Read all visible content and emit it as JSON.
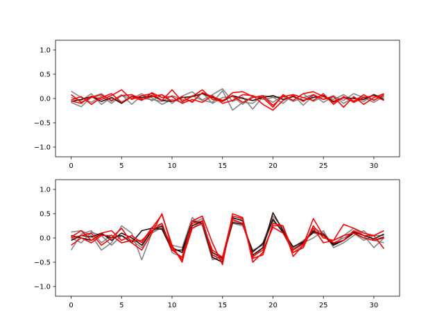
{
  "chart_data": [
    {
      "type": "line",
      "title": "",
      "xlabel": "",
      "ylabel": "",
      "xlim": [
        -1.55,
        32.55
      ],
      "ylim": [
        -1.2,
        1.2
      ],
      "xticks": [
        0,
        5,
        10,
        15,
        20,
        25,
        30
      ],
      "yticks": [
        -1.0,
        -0.5,
        0.0,
        0.5,
        1.0
      ],
      "xtick_labels": [
        "0",
        "5",
        "10",
        "15",
        "20",
        "25",
        "30"
      ],
      "ytick_labels": [
        "−1.0",
        "−0.5",
        "0.0",
        "0.5",
        "1.0"
      ],
      "grid": false,
      "colors": {
        "gray": "#777777",
        "dark": "#2a0a0a",
        "red": "#ff0000"
      },
      "series": [
        {
          "style": "gray",
          "values": [
            0.15,
            0.02,
            -0.08,
            0.05,
            -0.1,
            0.06,
            0.0,
            0.1,
            -0.05,
            0.08,
            -0.1,
            0.05,
            0.14,
            -0.03,
            0.08,
            0.2,
            -0.06,
            0.03,
            -0.22,
            0.04,
            -0.08,
            0.06,
            -0.04,
            0.1,
            -0.06,
            0.04,
            -0.02,
            0.08,
            -0.05,
            0.04,
            -0.03,
            0.06
          ]
        },
        {
          "style": "gray",
          "values": [
            -0.08,
            -0.17,
            0.03,
            0.1,
            -0.06,
            0.08,
            -0.12,
            0.06,
            0.02,
            -0.12,
            -0.02,
            -0.08,
            0.06,
            -0.04,
            -0.08,
            0.16,
            -0.24,
            -0.08,
            -0.1,
            0.06,
            0.03,
            -0.1,
            0.08,
            -0.14,
            0.06,
            -0.02,
            0.06,
            -0.1,
            0.02,
            -0.06,
            0.08,
            0.02
          ]
        },
        {
          "style": "gray",
          "values": [
            0.02,
            -0.04,
            0.1,
            -0.12,
            0.02,
            -0.08,
            0.05,
            0.0,
            -0.02,
            -0.06,
            0.06,
            -0.02,
            -0.06,
            0.12,
            -0.1,
            0.02,
            0.04,
            -0.12,
            0.06,
            -0.02,
            0.02,
            0.04,
            -0.06,
            0.02,
            0.08,
            -0.08,
            0.04,
            -0.04,
            0.1,
            0.02,
            -0.08,
            0.04
          ]
        },
        {
          "style": "dark",
          "values": [
            -0.06,
            -0.02,
            0.04,
            -0.06,
            0.02,
            -0.1,
            0.04,
            0.02,
            0.06,
            -0.04,
            -0.06,
            0.02,
            0.04,
            0.1,
            0.02,
            -0.06,
            0.06,
            0.0,
            -0.04,
            0.02,
            0.06,
            -0.02,
            0.04,
            -0.04,
            0.02,
            0.06,
            -0.06,
            0.02,
            0.0,
            -0.02,
            0.08,
            -0.02
          ]
        },
        {
          "style": "red",
          "values": [
            -0.05,
            -0.1,
            0.05,
            -0.02,
            0.06,
            0.18,
            -0.02,
            0.06,
            0.1,
            -0.04,
            0.18,
            -0.06,
            0.04,
            0.18,
            -0.02,
            -0.06,
            0.12,
            0.14,
            0.04,
            0.02,
            -0.18,
            0.08,
            -0.04,
            0.1,
            0.14,
            0.04,
            -0.08,
            0.02,
            -0.06,
            0.08,
            -0.04,
            0.08
          ]
        },
        {
          "style": "red",
          "values": [
            0.08,
            -0.08,
            0.02,
            0.08,
            -0.04,
            0.06,
            0.08,
            -0.02,
            0.04,
            0.08,
            -0.06,
            0.04,
            -0.08,
            0.12,
            0.04,
            -0.04,
            0.06,
            -0.08,
            0.02,
            0.06,
            -0.14,
            0.04,
            0.08,
            0.02,
            -0.04,
            0.1,
            -0.12,
            0.04,
            -0.08,
            0.02,
            0.06,
            -0.04
          ]
        },
        {
          "style": "red",
          "values": [
            -0.03,
            0.04,
            -0.12,
            0.02,
            0.1,
            -0.08,
            0.04,
            -0.04,
            0.12,
            0.02,
            0.04,
            -0.1,
            -0.02,
            -0.08,
            0.06,
            -0.1,
            -0.04,
            0.08,
            0.06,
            -0.12,
            -0.24,
            -0.04,
            0.06,
            -0.06,
            0.08,
            -0.02,
            0.04,
            -0.18,
            0.04,
            -0.12,
            0.02,
            0.1
          ]
        }
      ]
    },
    {
      "type": "line",
      "title": "",
      "xlabel": "",
      "ylabel": "",
      "xlim": [
        -1.55,
        32.55
      ],
      "ylim": [
        -1.2,
        1.2
      ],
      "xticks": [
        0,
        5,
        10,
        15,
        20,
        25,
        30
      ],
      "yticks": [
        -1.0,
        -0.5,
        0.0,
        0.5,
        1.0
      ],
      "xtick_labels": [
        "0",
        "5",
        "10",
        "15",
        "20",
        "25",
        "30"
      ],
      "ytick_labels": [
        "−1.0",
        "−0.5",
        "0.0",
        "0.5",
        "1.0"
      ],
      "grid": false,
      "colors": {
        "gray": "#777777",
        "dark": "#2a0a0a",
        "red": "#ff0000"
      },
      "series": [
        {
          "style": "gray",
          "values": [
            0.12,
            0.15,
            0.05,
            -0.25,
            -0.1,
            0.25,
            0.1,
            -0.45,
            0.1,
            0.22,
            -0.15,
            -0.2,
            0.42,
            0.25,
            -0.45,
            -0.38,
            0.35,
            0.3,
            -0.3,
            -0.1,
            0.45,
            0.2,
            -0.22,
            -0.1,
            0.0,
            0.15,
            -0.2,
            -0.1,
            0.05,
            0.15,
            -0.05,
            -0.1
          ]
        },
        {
          "style": "gray",
          "values": [
            -0.25,
            0.08,
            0.15,
            -0.1,
            0.06,
            -0.1,
            -0.05,
            -0.08,
            0.22,
            0.3,
            -0.3,
            -0.4,
            0.3,
            0.4,
            -0.4,
            -0.48,
            0.4,
            0.38,
            -0.4,
            -0.2,
            0.4,
            0.1,
            -0.3,
            -0.15,
            0.2,
            0.1,
            -0.15,
            0.05,
            0.2,
            0.05,
            -0.2,
            0.0
          ]
        },
        {
          "style": "gray",
          "values": [
            0.0,
            -0.1,
            0.12,
            0.05,
            -0.15,
            0.05,
            -0.05,
            -0.2,
            0.15,
            0.2,
            -0.2,
            -0.3,
            0.2,
            0.35,
            -0.35,
            -0.45,
            0.3,
            0.25,
            -0.25,
            -0.15,
            0.35,
            0.15,
            -0.2,
            -0.05,
            0.1,
            0.05,
            -0.1,
            0.0,
            0.1,
            -0.05,
            0.05,
            0.05
          ]
        },
        {
          "style": "dark",
          "values": [
            0.05,
            0.0,
            -0.05,
            0.08,
            0.0,
            0.05,
            -0.1,
            0.15,
            0.2,
            0.18,
            -0.25,
            -0.25,
            0.35,
            0.3,
            -0.4,
            -0.5,
            0.42,
            0.35,
            -0.35,
            -0.2,
            0.52,
            0.15,
            -0.25,
            -0.1,
            0.15,
            0.05,
            -0.15,
            -0.05,
            0.1,
            0.0,
            -0.05,
            0.02
          ]
        },
        {
          "style": "dark",
          "values": [
            -0.05,
            0.05,
            0.02,
            0.1,
            -0.05,
            0.1,
            0.0,
            -0.15,
            0.15,
            0.25,
            -0.2,
            -0.3,
            0.25,
            0.35,
            -0.3,
            -0.42,
            0.32,
            0.28,
            -0.28,
            -0.12,
            0.38,
            0.12,
            -0.18,
            -0.08,
            0.12,
            0.08,
            -0.12,
            -0.05,
            0.12,
            0.05,
            -0.02,
            0.08
          ]
        },
        {
          "style": "red",
          "values": [
            0.02,
            0.15,
            -0.05,
            0.1,
            0.15,
            -0.05,
            0.05,
            -0.1,
            0.2,
            0.48,
            -0.15,
            -0.5,
            0.35,
            0.45,
            -0.1,
            -0.55,
            0.5,
            0.42,
            -0.5,
            -0.3,
            0.25,
            0.25,
            -0.38,
            -0.15,
            0.4,
            0.05,
            -0.1,
            -0.05,
            0.15,
            0.05,
            0.05,
            0.15
          ]
        },
        {
          "style": "red",
          "values": [
            0.0,
            0.05,
            0.1,
            -0.15,
            0.0,
            0.2,
            -0.1,
            -0.25,
            0.1,
            0.5,
            -0.2,
            -0.45,
            0.2,
            0.3,
            -0.25,
            -0.4,
            0.45,
            0.4,
            -0.42,
            -0.35,
            0.3,
            0.25,
            -0.3,
            -0.2,
            0.25,
            0.0,
            -0.05,
            0.28,
            0.2,
            0.1,
            0.05,
            -0.22
          ]
        },
        {
          "style": "red",
          "values": [
            -0.15,
            0.0,
            -0.1,
            0.05,
            0.05,
            -0.1,
            -0.05,
            -0.05,
            0.15,
            0.3,
            -0.25,
            -0.4,
            0.3,
            0.35,
            -0.35,
            -0.45,
            0.38,
            0.3,
            -0.38,
            -0.25,
            0.22,
            0.1,
            -0.25,
            -0.12,
            0.2,
            -0.1,
            -0.05,
            0.05,
            0.1,
            0.0,
            -0.05,
            0.0
          ]
        }
      ]
    }
  ]
}
